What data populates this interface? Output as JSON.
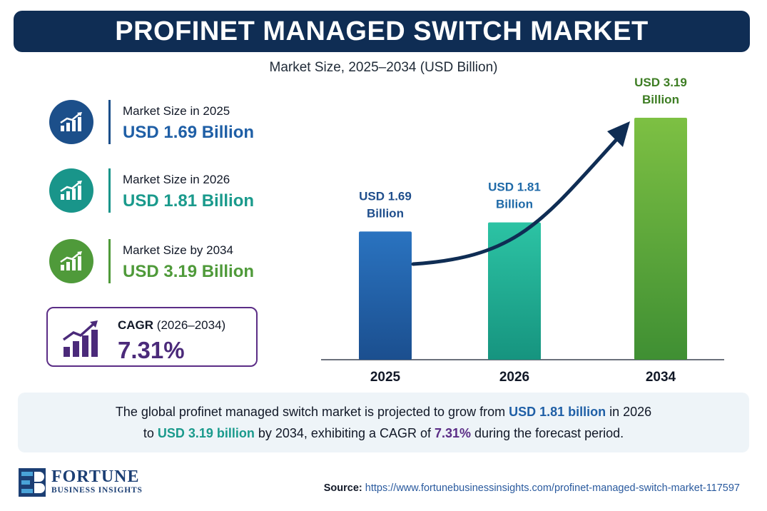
{
  "header": {
    "title": "PROFINET MANAGED SWITCH MARKET",
    "subtitle": "Market Size, 2025–2034 (USD Billion)"
  },
  "stats": [
    {
      "label": "Market Size in 2025",
      "value": "USD 1.69 Billion",
      "color": "#1f5fa6",
      "icon": "growth-chart-icon"
    },
    {
      "label": "Market Size in 2026",
      "value": "USD 1.81 Billion",
      "color": "#1a9a8c",
      "icon": "growth-chart-icon"
    },
    {
      "label": "Market Size by 2034",
      "value": "USD 3.19 Billion",
      "color": "#4f9a3a",
      "icon": "growth-chart-icon"
    }
  ],
  "cagr": {
    "label": "CAGR",
    "period": "(2026–2034)",
    "value": "7.31%",
    "color": "#5b2d86",
    "icon": "bar-growth-icon"
  },
  "chart_data": {
    "type": "bar",
    "categories": [
      "2025",
      "2026",
      "2034"
    ],
    "values": [
      1.69,
      1.81,
      3.19
    ],
    "data_labels": [
      [
        "USD 1.69",
        "Billion"
      ],
      [
        "USD 1.81",
        "Billion"
      ],
      [
        "USD 3.19",
        "Billion"
      ]
    ],
    "bar_colors": [
      "#1f5fa6",
      "#20b39a",
      "#5fae3c"
    ],
    "label_colors": [
      "#1f4e8c",
      "#1f6aa8",
      "#3d7d23"
    ],
    "trend_arrow": true,
    "grid": false
  },
  "summary": {
    "line1": [
      {
        "text": "The global profinet managed switch market is projected to grow from ",
        "style": "plain"
      },
      {
        "text": "USD 1.81 billion",
        "style": "blue"
      },
      {
        "text": " in 2026",
        "style": "plain"
      }
    ],
    "line2": [
      {
        "text": "to ",
        "style": "plain"
      },
      {
        "text": "USD 3.19 billion",
        "style": "teal"
      },
      {
        "text": " by 2034, exhibiting a CAGR of ",
        "style": "plain"
      },
      {
        "text": "7.31%",
        "style": "purple"
      },
      {
        "text": " during the forecast period.",
        "style": "plain"
      }
    ]
  },
  "footer": {
    "brand_name": "FORTUNE",
    "brand_sub": "BUSINESS INSIGHTS",
    "source_label": "Source:",
    "source_url": "https://www.fortunebusinessinsights.com/profinet-managed-switch-market-117597"
  }
}
